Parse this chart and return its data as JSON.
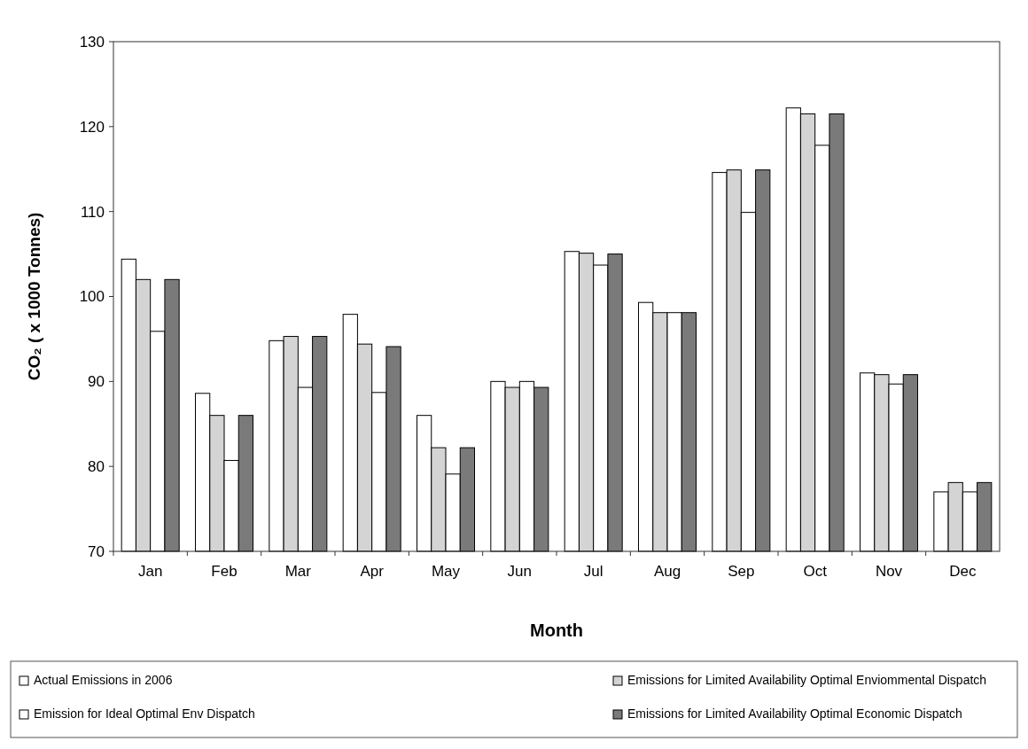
{
  "chart_data": {
    "type": "bar",
    "xlabel": "Month",
    "ylabel": "CO₂ ( x 1000 Tonnes)",
    "categories": [
      "Jan",
      "Feb",
      "Mar",
      "Apr",
      "May",
      "Jun",
      "Jul",
      "Aug",
      "Sep",
      "Oct",
      "Nov",
      "Dec"
    ],
    "series": [
      {
        "name": "Actual Emissions in 2006",
        "color": "#ffffff",
        "values": [
          104.4,
          88.6,
          94.8,
          97.9,
          86.0,
          90.0,
          105.3,
          99.3,
          114.6,
          122.2,
          91.0,
          77.0
        ]
      },
      {
        "name": "Emissions for Limited Availability Optimal Enviommental Dispatch",
        "color": "#d4d4d4",
        "values": [
          102.0,
          86.0,
          95.3,
          94.4,
          82.2,
          89.3,
          105.1,
          98.1,
          114.9,
          121.5,
          90.8,
          78.1
        ]
      },
      {
        "name": "Emission for Ideal Optimal Env Dispatch",
        "color": "#ffffff",
        "values": [
          95.9,
          80.7,
          89.3,
          88.7,
          79.1,
          90.0,
          103.7,
          98.1,
          109.9,
          117.8,
          89.7,
          77.0
        ]
      },
      {
        "name": "Emissions for Limited Availability Optimal Economic Dispatch",
        "color": "#7a7a7a",
        "values": [
          102.0,
          86.0,
          95.3,
          94.1,
          82.2,
          89.3,
          105.0,
          98.1,
          114.9,
          121.5,
          90.8,
          78.1
        ]
      }
    ],
    "ylim": [
      70,
      130
    ],
    "yticks": [
      70,
      80,
      90,
      100,
      110,
      120,
      130
    ],
    "grid": false,
    "legend": "bottom"
  }
}
